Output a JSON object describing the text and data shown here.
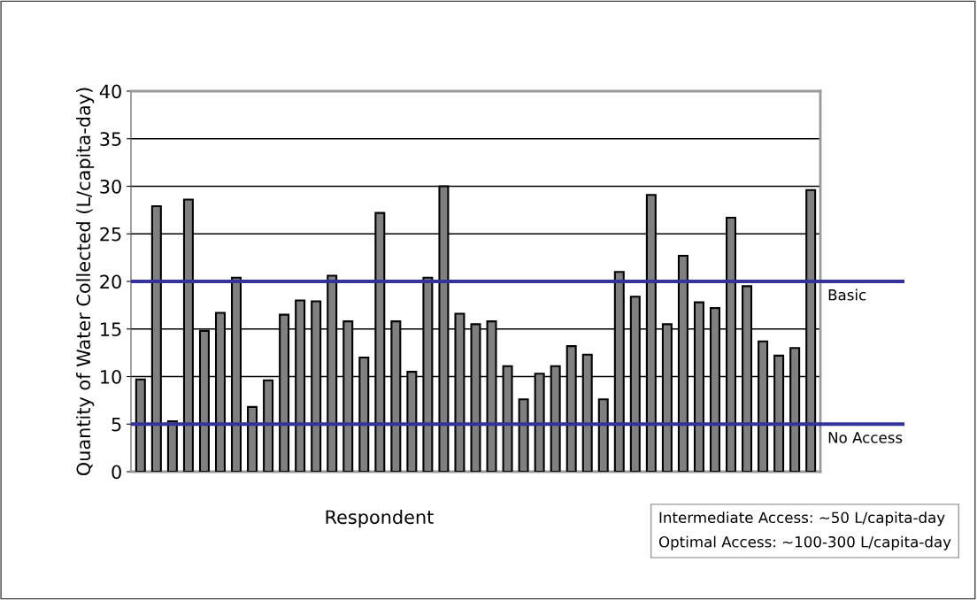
{
  "chart_data": {
    "type": "bar",
    "xlabel": "Respondent",
    "ylabel": "Quantity of Water Collected (L/capita-day)",
    "categories": [
      null,
      null,
      null,
      null,
      null,
      null,
      null,
      null,
      null,
      null,
      null,
      null,
      null,
      null,
      null,
      null,
      null,
      null,
      null,
      null,
      null,
      null,
      null,
      null,
      null,
      null,
      null,
      null,
      null,
      null,
      null,
      null,
      null,
      null,
      null,
      null,
      null,
      null,
      null,
      null,
      null,
      null,
      null
    ],
    "values": [
      9.7,
      27.9,
      5.3,
      28.6,
      14.8,
      16.7,
      20.4,
      6.8,
      9.6,
      16.5,
      18.0,
      17.9,
      20.6,
      15.8,
      12.0,
      27.2,
      15.8,
      10.5,
      20.4,
      30.0,
      16.6,
      15.5,
      15.8,
      11.1,
      7.6,
      10.3,
      11.1,
      13.2,
      12.3,
      7.6,
      21.0,
      18.4,
      29.1,
      15.5,
      22.7,
      17.8,
      17.2,
      26.7,
      19.5,
      13.7,
      12.2,
      13.0,
      29.6
    ],
    "color": "#808080",
    "ylim": [
      0,
      40
    ],
    "yticks": [
      0,
      5,
      10,
      15,
      20,
      25,
      30,
      35,
      40
    ],
    "grid": "y",
    "ref_lines": [
      {
        "axis": "y",
        "value": 20,
        "label": "Basic",
        "color": "#333399"
      },
      {
        "axis": "y",
        "value": 5,
        "label": "No Access",
        "color": "#333399"
      }
    ],
    "annotations": [
      "Intermediate Access: ~50 L/capita-day",
      "Optimal Access: ~100-300 L/capita-day"
    ]
  }
}
